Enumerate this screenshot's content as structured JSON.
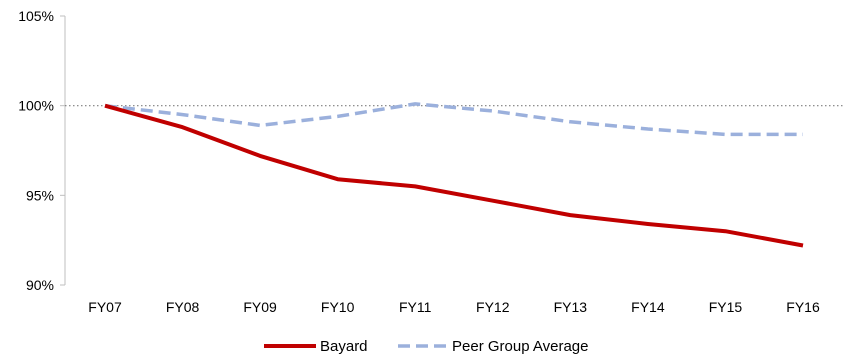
{
  "chart_data": {
    "type": "line",
    "title": "",
    "xlabel": "",
    "ylabel": "",
    "categories": [
      "FY07",
      "FY08",
      "FY09",
      "FY10",
      "FY11",
      "FY12",
      "FY13",
      "FY14",
      "FY15",
      "FY16"
    ],
    "y_ticks": [
      "105%",
      "100%",
      "95%",
      "90%"
    ],
    "ylim": [
      90,
      105
    ],
    "grid": false,
    "reference_line": {
      "y": 100,
      "style": "dotted",
      "color": "#7f7f7f"
    },
    "legend_position": "bottom",
    "series": [
      {
        "name": "Bayard",
        "color": "#c00000",
        "style": "solid",
        "values": [
          100.0,
          98.8,
          97.2,
          95.9,
          95.5,
          94.7,
          93.9,
          93.4,
          93.0,
          92.2
        ]
      },
      {
        "name": "Peer Group Average",
        "color": "#9bb0dc",
        "style": "dashed",
        "values": [
          100.0,
          99.5,
          98.9,
          99.4,
          100.1,
          99.7,
          99.1,
          98.7,
          98.4,
          98.4
        ]
      }
    ]
  }
}
